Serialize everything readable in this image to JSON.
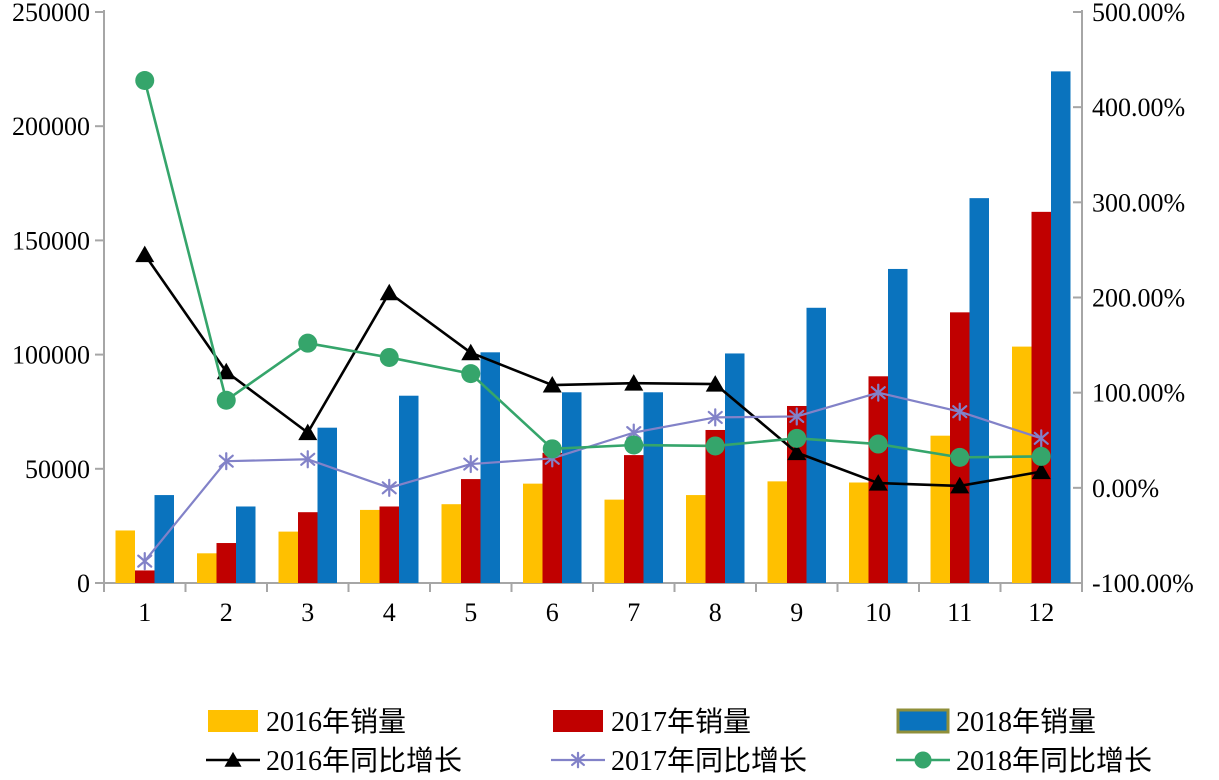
{
  "chart_data": {
    "type": "bar+line",
    "title": "",
    "categories": [
      "1",
      "2",
      "3",
      "4",
      "5",
      "6",
      "7",
      "8",
      "9",
      "10",
      "11",
      "12"
    ],
    "series": [
      {
        "name": "2016年销量",
        "type": "bar",
        "axis": "left",
        "color": "#FFC000",
        "values": [
          23000,
          13000,
          22500,
          32000,
          34500,
          43500,
          36500,
          38500,
          44500,
          44000,
          64500,
          103500
        ]
      },
      {
        "name": "2017年销量",
        "type": "bar",
        "axis": "left",
        "color": "#C00000",
        "values": [
          5500,
          17500,
          31000,
          33500,
          45500,
          57000,
          56000,
          67000,
          77500,
          90500,
          118500,
          162500
        ]
      },
      {
        "name": "2018年销量",
        "type": "bar",
        "axis": "left",
        "color": "#0A73BE",
        "swatch_border": "#8F8F3A",
        "values": [
          38500,
          33500,
          68000,
          82000,
          101000,
          83500,
          83500,
          100500,
          120500,
          137500,
          168500,
          224000
        ]
      },
      {
        "name": "2016年同比增长",
        "type": "line",
        "axis": "right",
        "color": "#000000",
        "marker": "triangle",
        "values_pct": [
          245,
          122,
          58,
          205,
          142,
          108,
          110,
          109,
          37,
          5,
          2,
          17
        ]
      },
      {
        "name": "2017年同比增长",
        "type": "line",
        "axis": "right",
        "color": "#8282C8",
        "marker": "asterisk",
        "values_pct": [
          -77,
          28,
          30,
          0,
          25,
          31,
          58,
          74,
          75,
          100,
          80,
          52
        ]
      },
      {
        "name": "2018年同比增长",
        "type": "line",
        "axis": "right",
        "color": "#35A56B",
        "marker": "circle",
        "values_pct": [
          428,
          92,
          152,
          137,
          120,
          41,
          45,
          44,
          52,
          46,
          32,
          33
        ]
      }
    ],
    "left_axis": {
      "min": 0,
      "max": 250000,
      "step": 50000,
      "tick_labels": [
        "0",
        "50000",
        "100000",
        "150000",
        "200000",
        "250000"
      ]
    },
    "right_axis": {
      "min": -100,
      "max": 500,
      "step": 100,
      "tick_labels": [
        "-100.00%",
        "0.00%",
        "100.00%",
        "200.00%",
        "300.00%",
        "400.00%",
        "500.00%"
      ]
    },
    "x_axis": {
      "tick_labels": [
        "1",
        "2",
        "3",
        "4",
        "5",
        "6",
        "7",
        "8",
        "9",
        "10",
        "11",
        "12"
      ]
    },
    "legend": {
      "position": "bottom",
      "entries": [
        "2016年销量",
        "2016年同比增长",
        "2017年销量",
        "2017年同比增长",
        "2018年销量",
        "2018年同比增长"
      ]
    },
    "grid": false
  },
  "colors": {
    "background": "#FFFFFF",
    "axis_line": "#A6A6A6",
    "text": "#000000",
    "bar_2016": "#FFC000",
    "bar_2017": "#C00000",
    "bar_2018": "#0A73BE",
    "line_2016": "#000000",
    "line_2017": "#8282C8",
    "line_2018": "#35A56B"
  }
}
